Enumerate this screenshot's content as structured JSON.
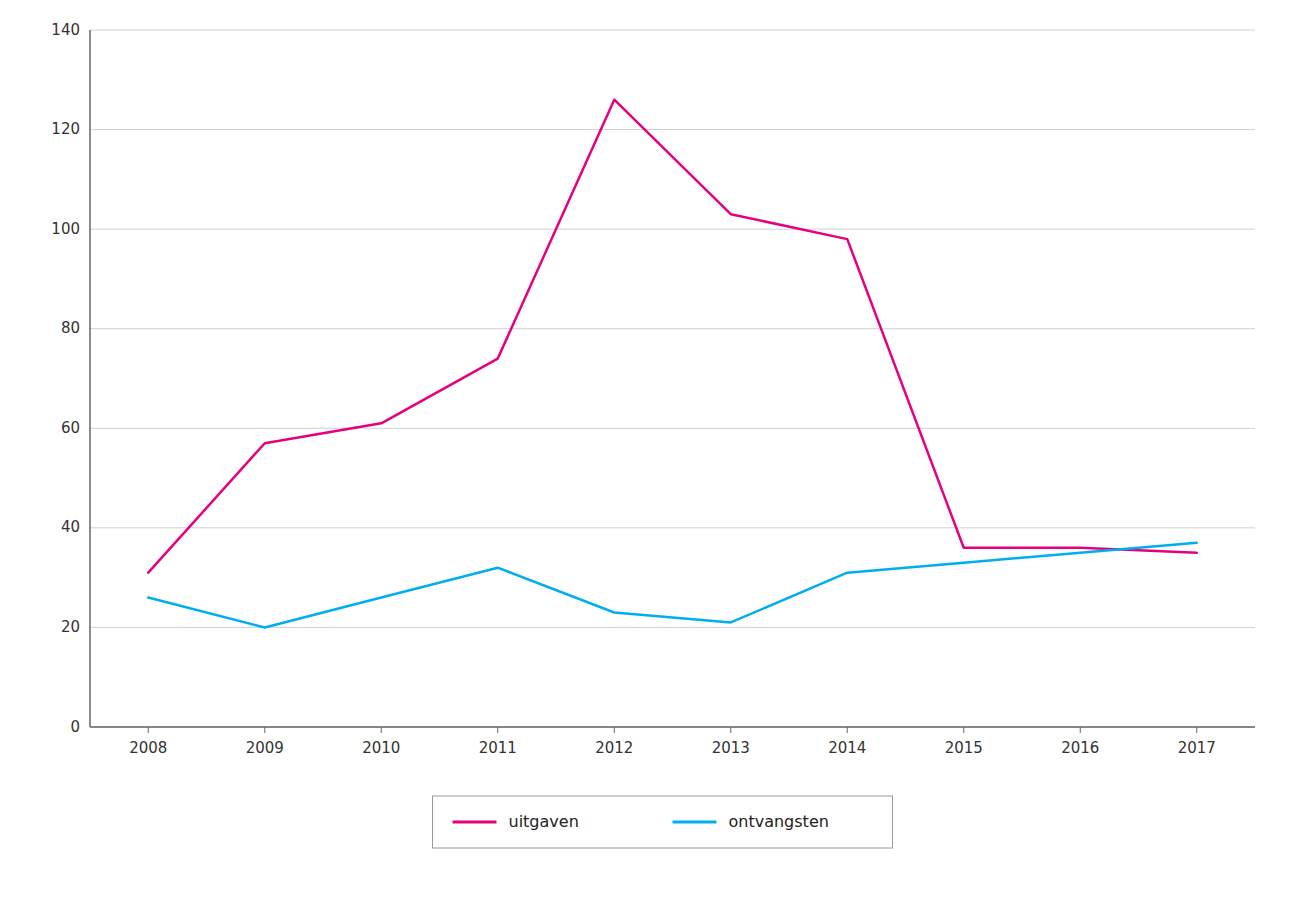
{
  "chart_data": {
    "type": "line",
    "x": [
      2008,
      2009,
      2010,
      2011,
      2012,
      2013,
      2014,
      2015,
      2016,
      2017
    ],
    "series": [
      {
        "name": "uitgaven",
        "color": "#E6007E",
        "values": [
          31,
          57,
          61,
          74,
          126,
          103,
          98,
          36,
          36,
          35
        ]
      },
      {
        "name": "ontvangsten",
        "color": "#00AEEF",
        "values": [
          26,
          20,
          26,
          32,
          23,
          21,
          31,
          33,
          35,
          37
        ]
      }
    ],
    "xlim": [
      2007.5,
      2017.5
    ],
    "xticks": [
      2008,
      2009,
      2010,
      2011,
      2012,
      2013,
      2014,
      2015,
      2016,
      2017
    ],
    "ylim": [
      0,
      140
    ],
    "yticks": [
      0,
      20,
      40,
      60,
      80,
      100,
      120,
      140
    ],
    "grid": true,
    "legend": "bottom"
  }
}
